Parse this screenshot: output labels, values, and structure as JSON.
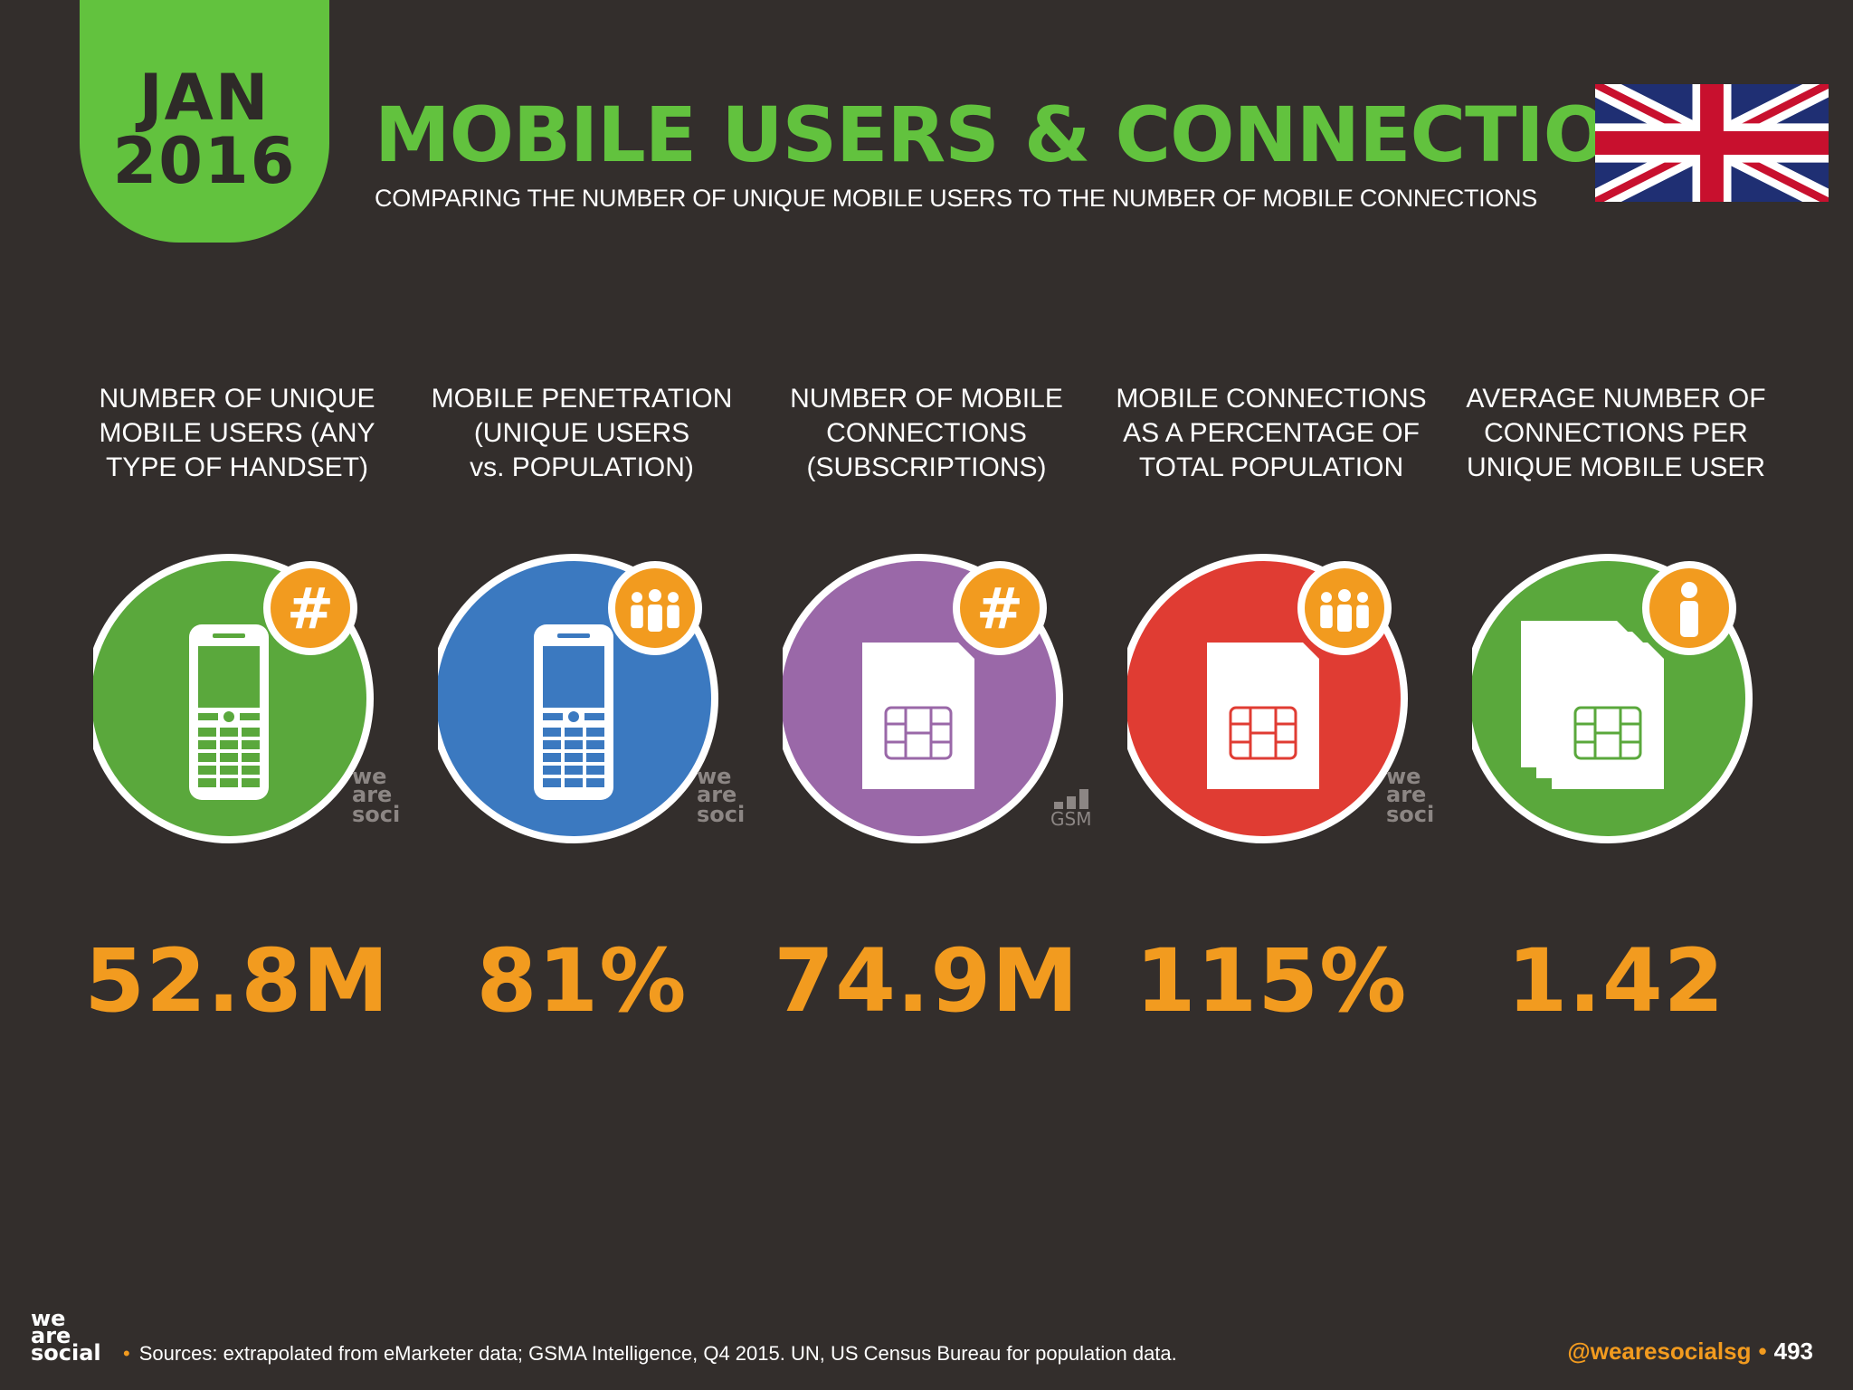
{
  "header": {
    "month": "JAN",
    "year": "2016",
    "title": "MOBILE USERS & CONNECTIONS",
    "subtitle": "COMPARING THE NUMBER OF UNIQUE MOBILE USERS TO THE NUMBER OF MOBILE CONNECTIONS",
    "flag_icon": "uk-flag-icon"
  },
  "stats": [
    {
      "label_lines": [
        "NUMBER OF UNIQUE",
        "MOBILE USERS (ANY",
        "TYPE OF HANDSET)"
      ],
      "value": "52.8M",
      "circle_color": "#5aa83c",
      "icon": "mobile-phone-icon",
      "badge_icon": "hash-icon",
      "watermark": [
        "we",
        "are",
        "social"
      ]
    },
    {
      "label_lines": [
        "MOBILE PENETRATION",
        "(UNIQUE USERS",
        "vs. POPULATION)"
      ],
      "value": "81%",
      "circle_color": "#3b79c0",
      "icon": "mobile-phone-icon",
      "badge_icon": "people-icon",
      "watermark": [
        "we",
        "are",
        "social"
      ]
    },
    {
      "label_lines": [
        "NUMBER OF MOBILE",
        "CONNECTIONS",
        "(SUBSCRIPTIONS)"
      ],
      "value": "74.9M",
      "circle_color": "#9a68a8",
      "icon": "sim-card-icon",
      "badge_icon": "hash-icon",
      "watermark_gsma": "GSMA"
    },
    {
      "label_lines": [
        "MOBILE CONNECTIONS",
        "AS A PERCENTAGE OF",
        "TOTAL POPULATION"
      ],
      "value": "115%",
      "circle_color": "#e03c33",
      "icon": "sim-card-icon",
      "badge_icon": "people-icon",
      "watermark": [
        "we",
        "are",
        "social"
      ]
    },
    {
      "label_lines": [
        "AVERAGE NUMBER OF",
        "CONNECTIONS PER",
        "UNIQUE MOBILE USER"
      ],
      "value": "1.42",
      "circle_color": "#5aa83c",
      "icon": "sim-cards-stack-icon",
      "badge_icon": "person-icon"
    }
  ],
  "footer": {
    "logo_lines": [
      "we",
      "are",
      "social"
    ],
    "sources": "Sources: extrapolated from eMarketer data; GSMA Intelligence, Q4 2015. UN, US Census Bureau for population data.",
    "handle": "@wearesocialsg",
    "page": "493"
  },
  "colors": {
    "background": "#332e2c",
    "green": "#62c23e",
    "orange": "#f29b1f"
  }
}
